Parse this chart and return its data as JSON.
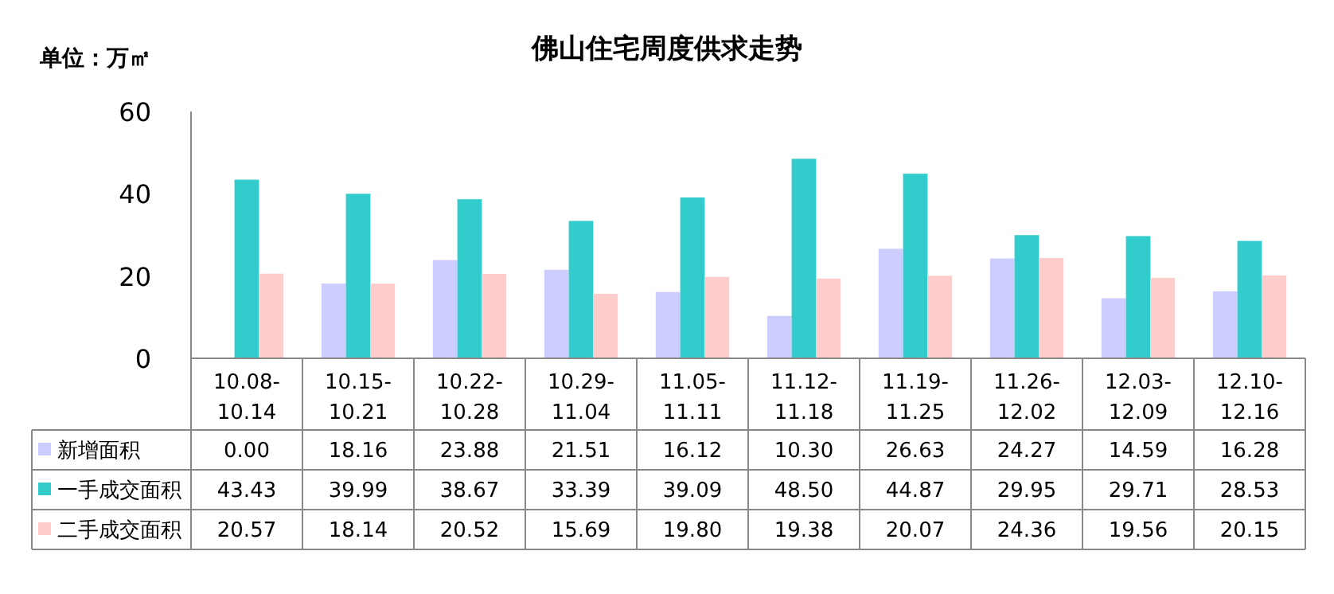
{
  "chart_data": {
    "type": "bar",
    "title": "佛山住宅周度供求走势",
    "annotations": [
      "单位：万㎡"
    ],
    "categories": [
      "10.08-10.14",
      "10.15-10.21",
      "10.22-10.28",
      "10.29-11.04",
      "11.05-11.11",
      "11.12-11.18",
      "11.19-11.25",
      "11.26-12.02",
      "12.03-12.09",
      "12.10-12.16"
    ],
    "series": [
      {
        "name": "新增面积",
        "color": "#ccccff",
        "values": [
          0.0,
          18.16,
          23.88,
          21.51,
          16.12,
          10.3,
          26.63,
          24.27,
          14.59,
          16.28
        ],
        "value_labels": [
          "0.00",
          "18.16",
          "23.88",
          "21.51",
          "16.12",
          "10.30",
          "26.63",
          "24.27",
          "14.59",
          "16.28"
        ]
      },
      {
        "name": "一手成交面积",
        "color": "#33cccc",
        "values": [
          43.43,
          39.99,
          38.67,
          33.39,
          39.09,
          48.5,
          44.87,
          29.95,
          29.71,
          28.53
        ],
        "value_labels": [
          "43.43",
          "39.99",
          "38.67",
          "33.39",
          "39.09",
          "48.50",
          "44.87",
          "29.95",
          "29.71",
          "28.53"
        ]
      },
      {
        "name": "二手成交面积",
        "color": "#ffcccc",
        "values": [
          20.57,
          18.14,
          20.52,
          15.69,
          19.8,
          19.38,
          20.07,
          24.36,
          19.56,
          20.15
        ],
        "value_labels": [
          "20.57",
          "18.14",
          "20.52",
          "15.69",
          "19.80",
          "19.38",
          "20.07",
          "24.36",
          "19.56",
          "20.15"
        ]
      }
    ],
    "ylim": [
      0,
      60
    ],
    "yticks": [
      0,
      20,
      40,
      60
    ],
    "grid": false,
    "legend": "bottom"
  }
}
